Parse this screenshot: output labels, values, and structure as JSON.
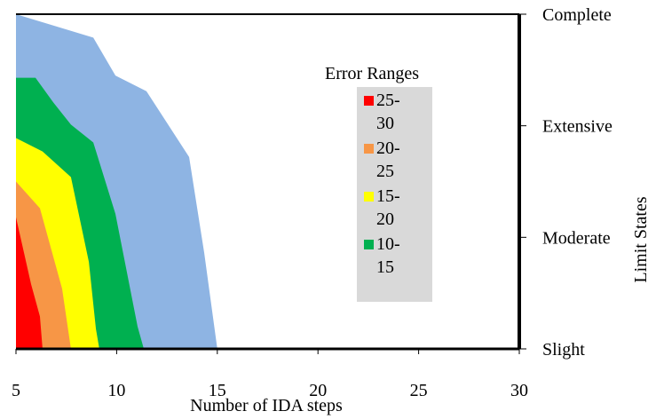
{
  "chart_data": {
    "type": "area",
    "legend_title": "Error Ranges",
    "x_label": "Number of IDA steps",
    "y_label": "Limit States",
    "xlim": [
      5,
      30
    ],
    "xticks": [
      5,
      10,
      15,
      20,
      25,
      30
    ],
    "ylim": [
      0,
      3
    ],
    "yticks": [
      {
        "value": 0,
        "label": "Slight"
      },
      {
        "value": 1,
        "label": "Moderate"
      },
      {
        "value": 2,
        "label": "Extensive"
      },
      {
        "value": 3,
        "label": "Complete"
      }
    ],
    "series": [
      {
        "name": "25-30",
        "color": "#ff0000",
        "x": [
          5,
          5.75,
          6.19,
          6.32
        ],
        "y": [
          1.18,
          0.58,
          0.29,
          0
        ]
      },
      {
        "name": "20-25",
        "color": "#f79646",
        "x": [
          5,
          6.19,
          7.29,
          7.73
        ],
        "y": [
          1.5,
          1.26,
          0.54,
          0
        ]
      },
      {
        "name": "15-20",
        "color": "#ffff00",
        "x": [
          5,
          6.32,
          7.73,
          8.62,
          8.97,
          9.14
        ],
        "y": [
          1.89,
          1.77,
          1.54,
          0.78,
          0.18,
          0
        ]
      },
      {
        "name": "10-15",
        "color": "#00b050",
        "x": [
          5,
          5.97,
          6.85,
          7.73,
          8.84,
          9.94,
          11.04,
          11.35
        ],
        "y": [
          2.43,
          2.43,
          2.21,
          2.01,
          1.85,
          1.21,
          0.2,
          0
        ]
      },
      {
        "color": "#8eb4e3",
        "x": [
          5,
          8.84,
          9.94,
          11.48,
          13.6,
          14.35,
          15.0
        ],
        "y": [
          3,
          2.79,
          2.45,
          2.31,
          1.72,
          0.86,
          0
        ]
      }
    ]
  }
}
